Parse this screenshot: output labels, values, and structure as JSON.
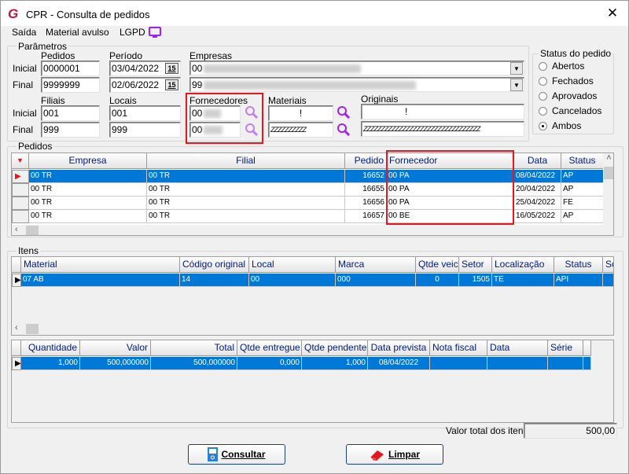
{
  "window": {
    "title": "CPR - Consulta de pedidos",
    "close": "✕"
  },
  "menu": {
    "items": [
      "Saída",
      "Material avulso",
      "LGPD"
    ]
  },
  "params": {
    "group_label": "Parâmetros",
    "inicial": "Inicial",
    "final": "Final",
    "pedidos": {
      "label": "Pedidos",
      "inicial": "0000001",
      "final": "9999999"
    },
    "periodo": {
      "label": "Período",
      "inicial": "03/04/2022",
      "final": "02/06/2022",
      "cal": "15"
    },
    "empresas": {
      "label": "Empresas",
      "inicial": "00",
      "final": "99"
    },
    "filiais": {
      "label": "Filiais",
      "inicial": "001",
      "final": "999"
    },
    "locais": {
      "label": "Locais",
      "inicial": "001",
      "final": "999"
    },
    "fornecedores": {
      "label": "Fornecedores",
      "inicial": "00",
      "final": "00"
    },
    "materiais": {
      "label": "Materiais",
      "inicial": "!",
      "final": "ZZZZZZZZZZ"
    },
    "originais": {
      "label": "Originais",
      "inicial": "!",
      "final": "ZZZZZZZZZZZZZZZZZZZZZZZZZZZZZZZZZ"
    }
  },
  "status": {
    "label": "Status do pedido",
    "options": [
      "Abertos",
      "Fechados",
      "Aprovados",
      "Cancelados",
      "Ambos"
    ],
    "selected": "Ambos"
  },
  "pedidos": {
    "group_label": "Pedidos",
    "columns": [
      "Empresa",
      "Filial",
      "Pedido",
      "Fornecedor",
      "Data",
      "Status"
    ],
    "rows": [
      [
        "00  TR",
        "00  TR",
        "16652",
        "00    PA",
        "08/04/2022",
        "AP"
      ],
      [
        "00  TR",
        "00  TR",
        "16655",
        "00    PA",
        "20/04/2022",
        "AP"
      ],
      [
        "00  TR",
        "00  TR",
        "16656",
        "00    PA",
        "25/04/2022",
        "FE"
      ],
      [
        "00  TR",
        "00  TR",
        "16657",
        "00    BE",
        "16/05/2022",
        "AP"
      ]
    ]
  },
  "itens": {
    "group_label": "Itens",
    "columns": [
      "Material",
      "Código original",
      "Local",
      "Marca",
      "Qtde veic",
      "Setor",
      "Localização",
      "Status",
      "So"
    ],
    "rows": [
      [
        "07     AB",
        "14",
        "00",
        "000",
        "0",
        "1505",
        "TE",
        "API",
        ""
      ]
    ],
    "columns2": [
      "Quantidade",
      "Valor",
      "Total",
      "Qtde entregue",
      "Qtde pendente",
      "Data prevista",
      "Nota fiscal",
      "Data",
      "Série",
      ""
    ],
    "rows2": [
      [
        "1,000",
        "500,000000",
        "500,000000",
        "0,000",
        "1,000",
        "08/04/2022",
        "",
        "",
        "",
        ""
      ]
    ]
  },
  "total": {
    "label": "Valor total dos itens",
    "value": "500,00"
  },
  "buttons": {
    "consultar": "Consultar",
    "limpar": "Limpar"
  },
  "colors": {
    "accent": "#0078d7",
    "highlight_box": "#e8141e",
    "search_icon": "#a020f0"
  }
}
